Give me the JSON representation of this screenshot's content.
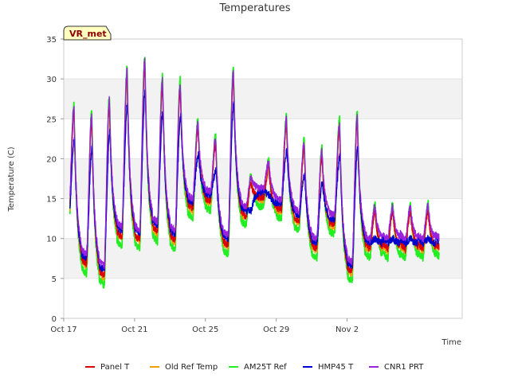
{
  "chart_data": {
    "type": "line",
    "title": "Temperatures",
    "xlabel": "Time",
    "ylabel": "Temperature (C)",
    "badge": "VR_met",
    "ylim": [
      0,
      35
    ],
    "yticks": [
      0,
      5,
      10,
      15,
      20,
      25,
      30,
      35
    ],
    "xlim_days": [
      0,
      22.5
    ],
    "xticks": [
      {
        "day": 0,
        "label": "Oct 17"
      },
      {
        "day": 4,
        "label": "Oct 21"
      },
      {
        "day": 8,
        "label": "Oct 25"
      },
      {
        "day": 12,
        "label": "Oct 29"
      },
      {
        "day": 16,
        "label": "Nov 2"
      }
    ],
    "grid": "horizontal alternating bands",
    "legend_position": "bottom",
    "daily_extremes": {
      "days": [
        "Oct 17",
        "Oct 18",
        "Oct 19",
        "Oct 20",
        "Oct 21",
        "Oct 22",
        "Oct 23",
        "Oct 24",
        "Oct 25",
        "Oct 26",
        "Oct 27",
        "Oct 28",
        "Oct 29",
        "Oct 30",
        "Oct 31",
        "Nov 1",
        "Nov 2",
        "Nov 3"
      ],
      "min": [
        10.5,
        6.0,
        4.5,
        9.5,
        9.0,
        10.0,
        9.0,
        13.0,
        14.0,
        8.5,
        12.0,
        14.5,
        13.0,
        11.5,
        8.0,
        11.0,
        5.0,
        8.0
      ],
      "max": [
        26.5,
        25.5,
        27.5,
        31.0,
        32.5,
        30.0,
        29.5,
        24.5,
        22.5,
        31.0,
        17.5,
        19.5,
        25.0,
        22.0,
        21.0,
        24.5,
        25.5,
        14.0
      ]
    },
    "series": [
      {
        "name": "Panel T",
        "color": "#dd0000"
      },
      {
        "name": "Old Ref Temp",
        "color": "#f0a000"
      },
      {
        "name": "AM25T Ref",
        "color": "#22ee22"
      },
      {
        "name": "HMP45 T",
        "color": "#0000cc"
      },
      {
        "name": "CNR1 PRT",
        "color": "#9922dd"
      }
    ]
  }
}
